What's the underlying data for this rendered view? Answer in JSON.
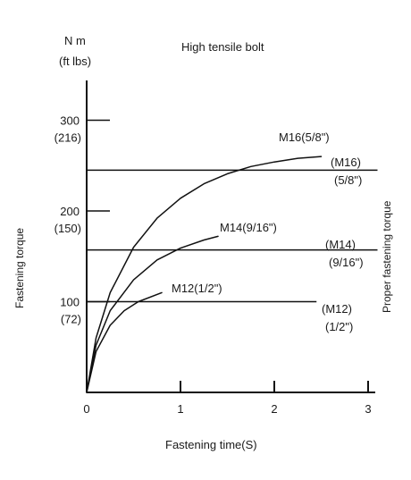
{
  "chart_data": {
    "type": "line",
    "title": "High tensile bolt",
    "xlabel": "Fastening time(S)",
    "ylabel": "Fastening torque",
    "right_label": "Proper fastening torque",
    "unit_label_top": "N m",
    "unit_label_bottom": "(ft lbs)",
    "xlim": [
      0,
      3.2
    ],
    "ylim": [
      0,
      340
    ],
    "x_ticks": [
      {
        "value": 0,
        "label": "0"
      },
      {
        "value": 1,
        "label": "1"
      },
      {
        "value": 2,
        "label": "2"
      },
      {
        "value": 3,
        "label": "3"
      }
    ],
    "y_ticks": [
      {
        "value": 100,
        "label": "100",
        "sub": "(72)"
      },
      {
        "value": 200,
        "label": "200",
        "sub": "(150)"
      },
      {
        "value": 300,
        "label": "300",
        "sub": "(216)"
      }
    ],
    "series": [
      {
        "name": "M16(5/8\")",
        "proper_label": "(M16)",
        "proper_sub": "(5/8\")",
        "proper_torque": 245,
        "line_xmax": 3.1,
        "x": [
          0,
          0.1,
          0.25,
          0.5,
          0.75,
          1.0,
          1.25,
          1.5,
          1.75,
          2.0,
          2.25,
          2.5
        ],
        "y": [
          0,
          60,
          110,
          160,
          192,
          214,
          230,
          241,
          249,
          254,
          258,
          260
        ]
      },
      {
        "name": "M14(9/16\")",
        "proper_label": "(M14)",
        "proper_sub": "(9/16\")",
        "proper_torque": 157,
        "line_xmax": 3.1,
        "x": [
          0,
          0.1,
          0.25,
          0.5,
          0.75,
          1.0,
          1.25,
          1.4
        ],
        "y": [
          0,
          52,
          90,
          124,
          146,
          159,
          168,
          172
        ]
      },
      {
        "name": "M12(1/2\")",
        "proper_label": "(M12)",
        "proper_sub": "(1/2\")",
        "proper_torque": 100,
        "line_xmax": 2.45,
        "x": [
          0,
          0.1,
          0.25,
          0.4,
          0.55,
          0.8
        ],
        "y": [
          0,
          45,
          74,
          90,
          100,
          110
        ]
      }
    ]
  }
}
